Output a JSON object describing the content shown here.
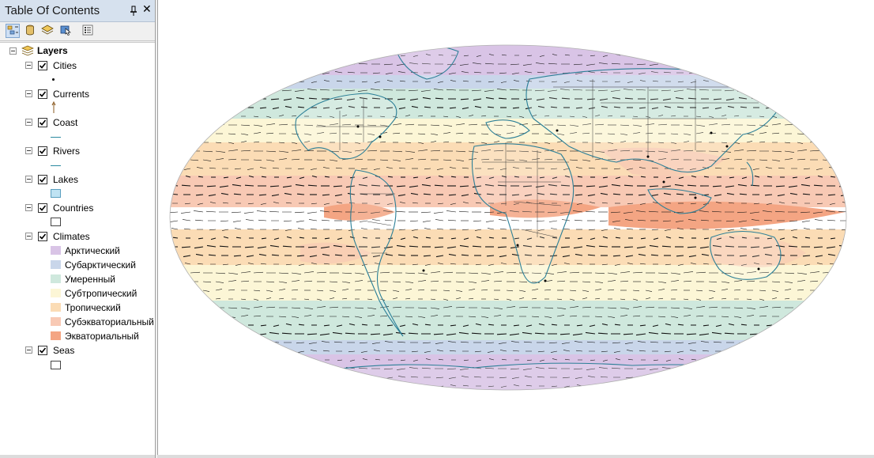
{
  "toc": {
    "title": "Table Of Contents",
    "pin_icon": "pin-icon",
    "close_label": "✕",
    "toolbar_icons": [
      "list-by-drawing-order-icon",
      "list-by-source-icon",
      "list-by-visibility-icon",
      "list-by-selection-icon",
      "options-icon"
    ]
  },
  "layers": {
    "root_label": "Layers",
    "items": [
      {
        "name": "Cities",
        "checked": true,
        "symbol": "point"
      },
      {
        "name": "Currents",
        "checked": true,
        "symbol": "arrow"
      },
      {
        "name": "Coast",
        "checked": true,
        "symbol": "line"
      },
      {
        "name": "Rivers",
        "checked": true,
        "symbol": "line"
      },
      {
        "name": "Lakes",
        "checked": true,
        "symbol": "fill"
      },
      {
        "name": "Countries",
        "checked": true,
        "symbol": "hollow"
      },
      {
        "name": "Climates",
        "checked": true,
        "symbol": "classes"
      },
      {
        "name": "Seas",
        "checked": true,
        "symbol": "hollow"
      }
    ],
    "climate_classes": [
      {
        "label": "Арктический",
        "color": "#d9c4e6"
      },
      {
        "label": "Субарктический",
        "color": "#c9d6ea"
      },
      {
        "label": "Умеренный",
        "color": "#cfe8dd"
      },
      {
        "label": "Субтропический",
        "color": "#fcf6d6"
      },
      {
        "label": "Тропический",
        "color": "#fbdcb5"
      },
      {
        "label": "Субэкваториальный",
        "color": "#f8c9b4"
      },
      {
        "label": "Экваториальный",
        "color": "#f4a583"
      }
    ],
    "lakes_color": "#bfe3f3",
    "coast_color": "#2b8aa0"
  },
  "map": {
    "coast_color": "#2b7f97",
    "country_color": "#3a3a3a",
    "currents_color": "#000000"
  }
}
